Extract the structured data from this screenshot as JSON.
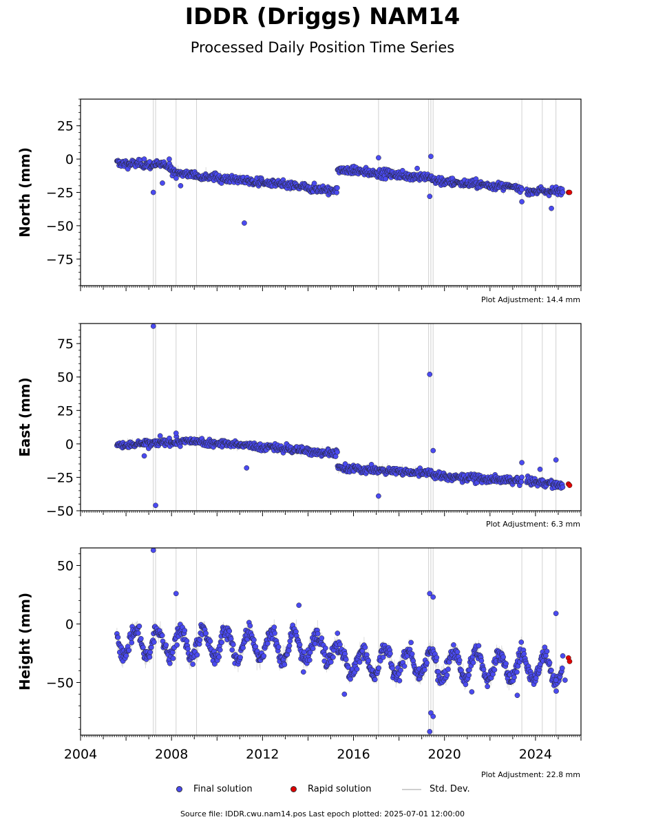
{
  "title": "IDDR (Driggs) NAM14",
  "subtitle": "Processed Daily Position Time Series",
  "source_text": "Source file: IDDR.cwu.nam14.pos  Last epoch plotted: 2025-07-01 12:00:00",
  "legend": {
    "final": "Final solution",
    "rapid": "Rapid solution",
    "std": "Std. Dev."
  },
  "colors": {
    "final": "#4a4af0",
    "rapid": "#e00000",
    "std": "#b0b0b0"
  },
  "chart_data": [
    {
      "type": "scatter",
      "ylabel": "North (mm)",
      "adjustment": "Plot Adjustment: 14.4 mm",
      "xlim": [
        2004.0,
        2026.0
      ],
      "ylim": [
        -95,
        45
      ],
      "yticks": [
        25,
        0,
        -25,
        -50,
        -75
      ],
      "yticklabels": [
        "25",
        "0",
        "−25",
        "−50",
        "−75"
      ],
      "segments": [
        {
          "x": [
            2005.6,
            2008.0
          ],
          "y": [
            -3,
            -5
          ]
        },
        {
          "x": [
            2008.0,
            2015.3
          ],
          "y": [
            -10,
            -24
          ]
        },
        {
          "x": [
            2015.3,
            2019.5
          ],
          "y": [
            -8,
            -14
          ]
        },
        {
          "x": [
            2019.5,
            2023.4
          ],
          "y": [
            -16,
            -22
          ]
        },
        {
          "x": [
            2023.6,
            2025.2
          ],
          "y": [
            -24,
            -24
          ]
        }
      ],
      "noise": 2.2,
      "outliers": [
        {
          "x": 2007.2,
          "y": -25
        },
        {
          "x": 2007.6,
          "y": -18
        },
        {
          "x": 2008.4,
          "y": -20
        },
        {
          "x": 2011.2,
          "y": -48
        },
        {
          "x": 2017.1,
          "y": 1
        },
        {
          "x": 2019.4,
          "y": 2
        },
        {
          "x": 2019.35,
          "y": -28
        },
        {
          "x": 2024.7,
          "y": -37
        },
        {
          "x": 2023.4,
          "y": -32
        },
        {
          "x": 2018.8,
          "y": -7
        },
        {
          "x": 2006.8,
          "y": 0
        },
        {
          "x": 2007.9,
          "y": 0
        }
      ],
      "rapid": [
        {
          "x": 2025.45,
          "y": -25
        },
        {
          "x": 2025.5,
          "y": -25
        }
      ]
    },
    {
      "type": "scatter",
      "ylabel": "East (mm)",
      "adjustment": "Plot Adjustment: 6.3 mm",
      "xlim": [
        2004.0,
        2026.0
      ],
      "ylim": [
        -50,
        90
      ],
      "yticks": [
        75,
        50,
        25,
        0,
        -25,
        -50
      ],
      "yticklabels": [
        "75",
        "50",
        "25",
        "0",
        "−25",
        "−50"
      ],
      "segments": [
        {
          "x": [
            2005.6,
            2009.0
          ],
          "y": [
            -1,
            2
          ]
        },
        {
          "x": [
            2009.0,
            2015.3
          ],
          "y": [
            2,
            -7
          ]
        },
        {
          "x": [
            2015.3,
            2019.5
          ],
          "y": [
            -18,
            -22
          ]
        },
        {
          "x": [
            2019.5,
            2023.4
          ],
          "y": [
            -24,
            -28
          ]
        },
        {
          "x": [
            2023.6,
            2025.2
          ],
          "y": [
            -28,
            -31
          ]
        }
      ],
      "noise": 2.0,
      "outliers": [
        {
          "x": 2007.2,
          "y": 88
        },
        {
          "x": 2007.3,
          "y": -46
        },
        {
          "x": 2011.3,
          "y": -18
        },
        {
          "x": 2017.1,
          "y": -39
        },
        {
          "x": 2019.35,
          "y": 52
        },
        {
          "x": 2019.5,
          "y": -5
        },
        {
          "x": 2023.4,
          "y": -14
        },
        {
          "x": 2024.2,
          "y": -19
        },
        {
          "x": 2024.9,
          "y": -12
        },
        {
          "x": 2008.2,
          "y": 8
        },
        {
          "x": 2007.5,
          "y": 6
        },
        {
          "x": 2006.8,
          "y": -9
        }
      ],
      "rapid": [
        {
          "x": 2025.45,
          "y": -30
        },
        {
          "x": 2025.5,
          "y": -31
        }
      ]
    },
    {
      "type": "scatter",
      "ylabel": "Height (mm)",
      "adjustment": "Plot Adjustment: 22.8 mm",
      "xlim": [
        2004.0,
        2026.0
      ],
      "ylim": [
        -95,
        65
      ],
      "yticks": [
        50,
        0,
        -50
      ],
      "yticklabels": [
        "50",
        "0",
        "−50"
      ],
      "xticks": [
        2004,
        2008,
        2012,
        2016,
        2020,
        2024
      ],
      "xticklabels": [
        "2004",
        "2008",
        "2012",
        "2016",
        "2020",
        "2024"
      ],
      "segments": [
        {
          "x": [
            2005.6,
            2015.3
          ],
          "y": [
            -15,
            -20
          ]
        },
        {
          "x": [
            2015.3,
            2025.2
          ],
          "y": [
            -32,
            -38
          ]
        }
      ],
      "seasonal_amplitude": 12,
      "noise": 5.0,
      "outliers": [
        {
          "x": 2007.2,
          "y": 63
        },
        {
          "x": 2008.2,
          "y": 26
        },
        {
          "x": 2013.6,
          "y": 16
        },
        {
          "x": 2019.35,
          "y": 26
        },
        {
          "x": 2019.5,
          "y": 23
        },
        {
          "x": 2019.35,
          "y": -92
        },
        {
          "x": 2019.4,
          "y": -76
        },
        {
          "x": 2019.5,
          "y": -79
        },
        {
          "x": 2024.9,
          "y": 9
        },
        {
          "x": 2015.6,
          "y": -60
        },
        {
          "x": 2021.2,
          "y": -58
        },
        {
          "x": 2013.8,
          "y": -41
        },
        {
          "x": 2023.2,
          "y": -61
        },
        {
          "x": 2024.9,
          "y": -48
        },
        {
          "x": 2025.3,
          "y": -48
        }
      ],
      "rapid": [
        {
          "x": 2025.45,
          "y": -29
        },
        {
          "x": 2025.5,
          "y": -32
        }
      ]
    }
  ]
}
